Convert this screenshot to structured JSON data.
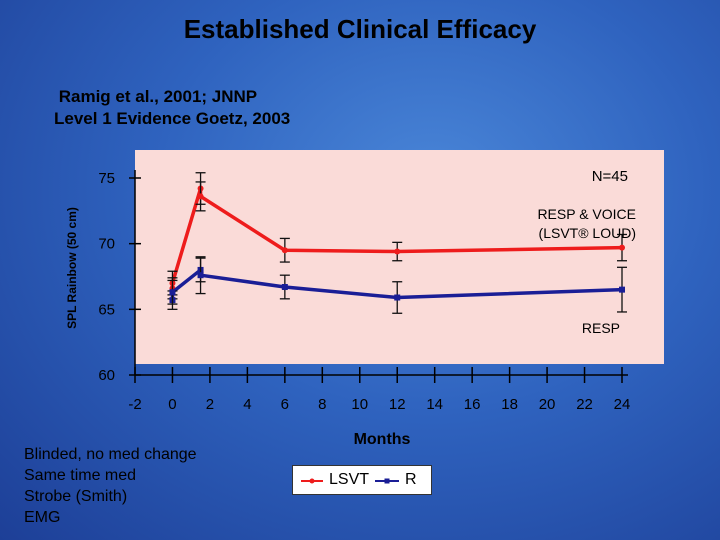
{
  "slide": {
    "title": "Established Clinical Efficacy",
    "citation": [
      " Ramig et al., 2001; JNNP",
      "Level 1 Evidence Goetz, 2003"
    ],
    "notes": [
      "Blinded, no med change",
      "Same time med",
      "Strobe (Smith)",
      "EMG"
    ]
  },
  "colors": {
    "background": "#2f63bf",
    "plot_area": "#fadbd8",
    "lsvt": "#ee1c1c",
    "r": "#1a1e96"
  },
  "chart_data": {
    "type": "line",
    "ylabel": "SPL Rainbow (50 cm)",
    "xlabel": "Months",
    "ylim": [
      60,
      75
    ],
    "yticks": [
      60,
      65,
      70,
      75
    ],
    "xlim": [
      -2,
      24
    ],
    "xticks": [
      -2,
      0,
      2,
      4,
      6,
      8,
      10,
      12,
      14,
      16,
      18,
      20,
      22,
      24
    ],
    "grid": false,
    "legend_position": "bottom-center",
    "annotations": [
      "N=45",
      "RESP & VOICE\n(LSVT® LOUD)",
      "RESP"
    ],
    "series": [
      {
        "name": "LSVT",
        "color": "#ee1c1c",
        "x": [
          0,
          0,
          1.5,
          1.5,
          6,
          12,
          24
        ],
        "y": [
          66.6,
          67.0,
          74.2,
          73.6,
          69.5,
          69.4,
          69.7
        ],
        "err": [
          0.8,
          0.9,
          1.2,
          1.1,
          0.9,
          0.7,
          1.0
        ]
      },
      {
        "name": "R",
        "color": "#1a1e96",
        "x": [
          0,
          0,
          1.5,
          1.5,
          6,
          12,
          24
        ],
        "y": [
          65.7,
          66.3,
          68.0,
          67.6,
          66.7,
          65.9,
          66.5
        ],
        "err": [
          0.7,
          0.9,
          0.9,
          1.4,
          0.9,
          1.2,
          1.7
        ]
      }
    ]
  }
}
